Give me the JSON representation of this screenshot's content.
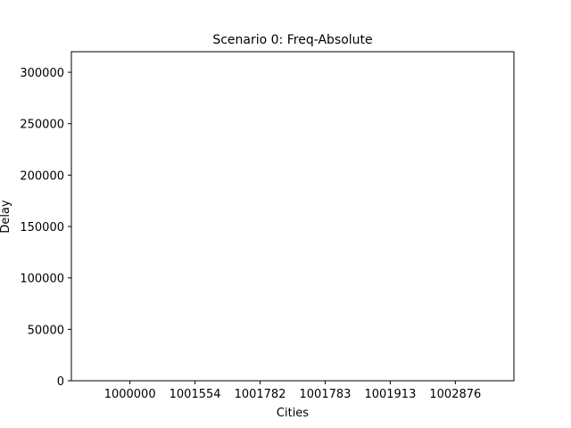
{
  "chart_data": {
    "type": "bar",
    "title": "Scenario 0: Freq-Absolute",
    "xlabel": "Cities",
    "ylabel": "Delay",
    "categories": [
      "1000000",
      "1001554",
      "1001782",
      "1001783",
      "1001913",
      "1002876"
    ],
    "series": [
      {
        "values": [
          0,
          0,
          0,
          0,
          0,
          0
        ]
      }
    ],
    "ylim": [
      0,
      320000
    ],
    "yticks": [
      0,
      50000,
      100000,
      150000,
      200000,
      250000,
      300000
    ],
    "ytick_labels": [
      "0",
      "50000",
      "100000",
      "150000",
      "200000",
      "250000",
      "300000"
    ],
    "grid": false,
    "colors": {
      "axis": "#000000",
      "bar": "#1f77b4",
      "background": "#ffffff"
    }
  }
}
